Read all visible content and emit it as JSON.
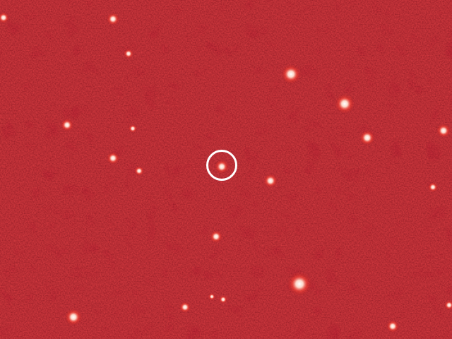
{
  "scene": {
    "type": "astronomical-image",
    "background_color": "#7a0c12",
    "star_core_color": "#ffffff",
    "star_halo_color": "#ff4a3a",
    "marker_color": "#ffffff"
  }
}
